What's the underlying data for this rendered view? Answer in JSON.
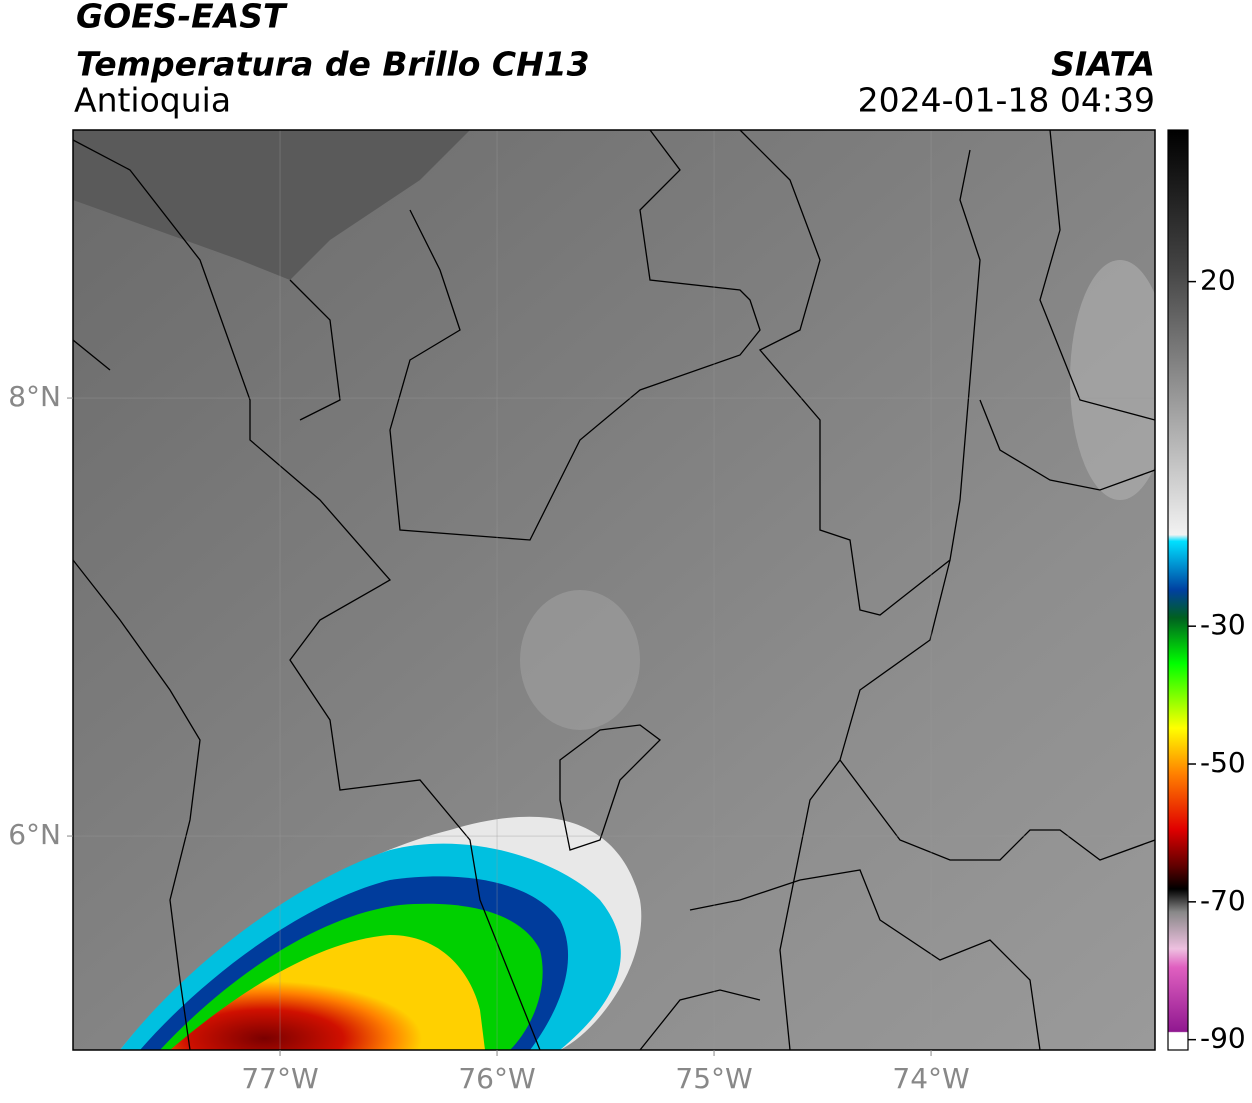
{
  "header": {
    "title": "GOES-EAST",
    "subtitle": "Temperatura de Brillo CH13",
    "source": "SIATA",
    "region": "Antioquia",
    "datetime": "2024-01-18 04:39"
  },
  "map": {
    "lonlim": [
      -77.954,
      -72.968
    ],
    "latlim": [
      5.023,
      9.224
    ],
    "lon_ticks": [
      {
        "value": -77,
        "label": "77°W"
      },
      {
        "value": -76,
        "label": "76°W"
      },
      {
        "value": -75,
        "label": "75°W"
      },
      {
        "value": -74,
        "label": "74°W"
      }
    ],
    "lat_ticks": [
      {
        "value": 8,
        "label": "8°N"
      },
      {
        "value": 6,
        "label": "6°N"
      }
    ]
  },
  "colorbar": {
    "lim": [
      -91.5,
      42
    ],
    "ticks": [
      20,
      -30,
      -50,
      -70,
      -90
    ]
  }
}
